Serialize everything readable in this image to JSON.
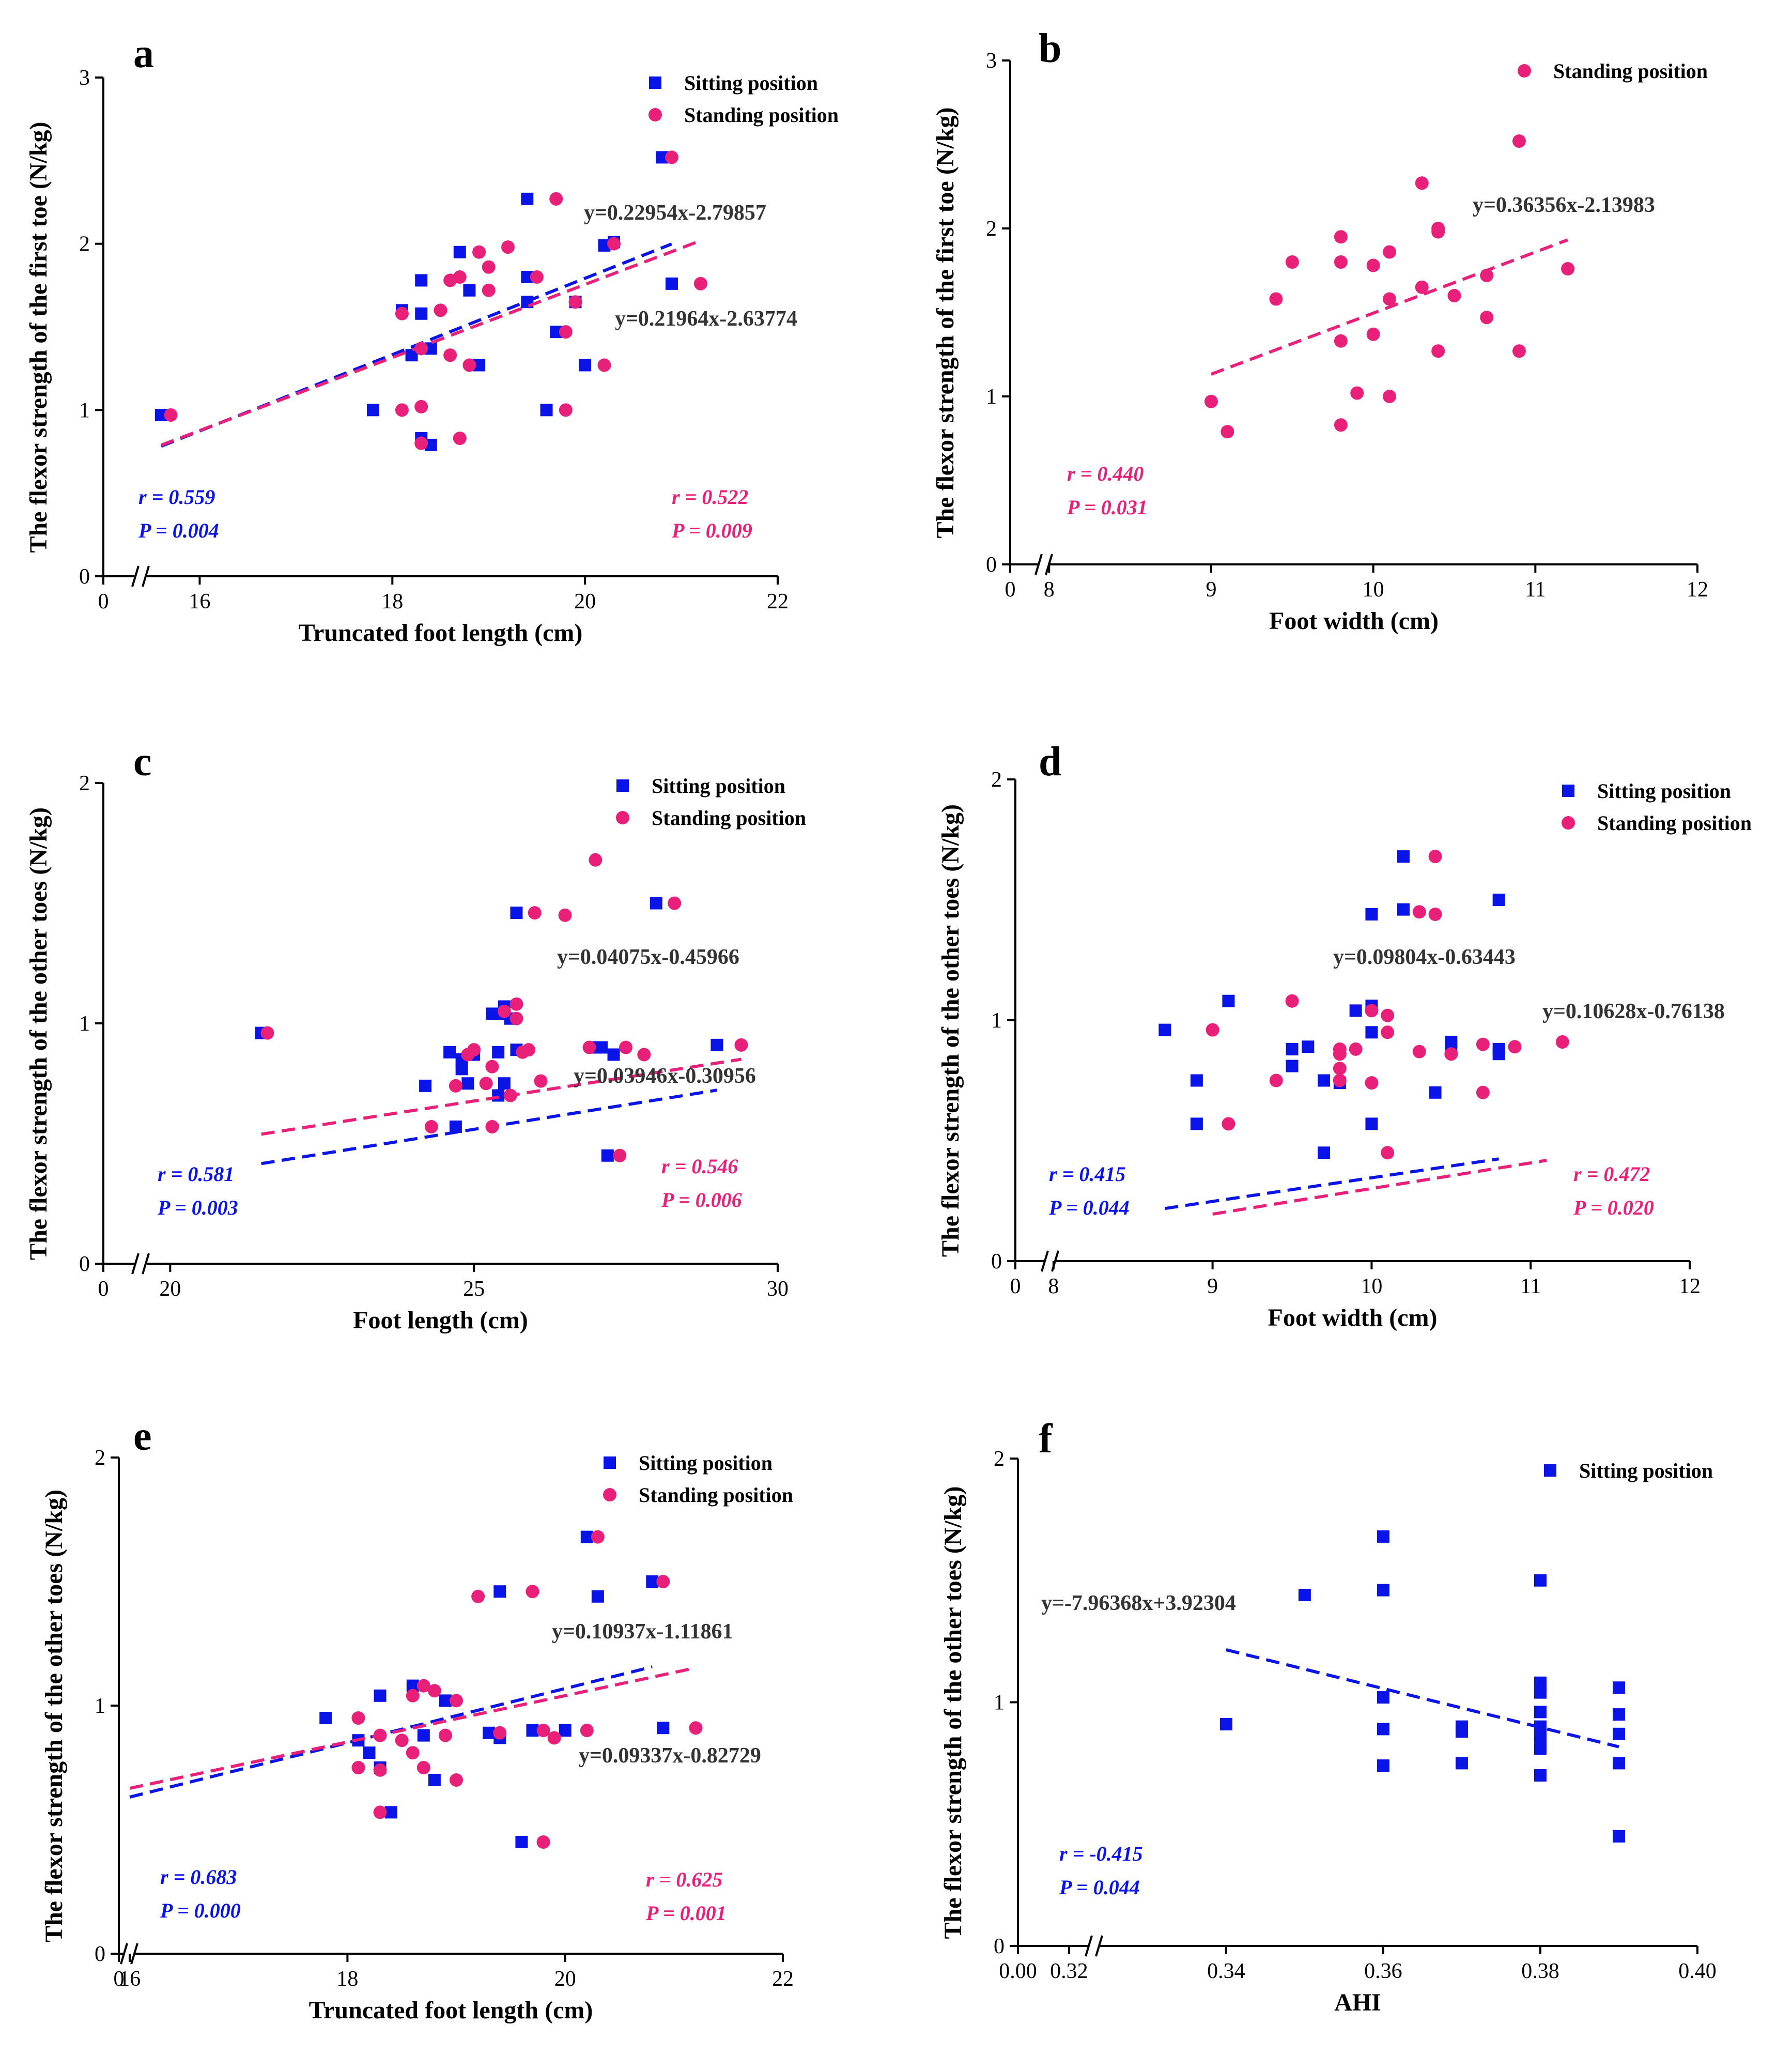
{
  "colors": {
    "sitting": "#0a14e6",
    "standing": "#e8207a",
    "axis": "#000000"
  },
  "chart_data": [
    {
      "type": "scatter",
      "panel": "a",
      "xlabel": "Truncated foot length (cm)",
      "ylabel": "The flexor strength of the first toe (N/kg)",
      "xlim": [
        15.0,
        22
      ],
      "ylim": [
        0,
        3
      ],
      "xticks": [
        0,
        16,
        18,
        20,
        22
      ],
      "yticks": [
        0,
        1,
        2,
        3
      ],
      "x_break": true,
      "legend_position": "top-right",
      "series": [
        {
          "name": "Sitting position",
          "marker": "square",
          "color": "#0a14e6",
          "x": [
            15.6,
            17.8,
            18.1,
            18.2,
            18.3,
            18.3,
            18.3,
            18.4,
            18.4,
            18.7,
            18.8,
            18.9,
            19.4,
            19.4,
            19.4,
            19.6,
            19.7,
            19.9,
            20.0,
            20.2,
            20.3,
            20.8,
            20.9
          ],
          "y": [
            0.97,
            1.0,
            1.6,
            1.33,
            1.78,
            1.58,
            0.83,
            1.37,
            0.79,
            1.95,
            1.72,
            1.27,
            2.27,
            1.8,
            1.65,
            1.0,
            1.47,
            1.65,
            1.27,
            1.99,
            2.01,
            2.52,
            1.76
          ],
          "fit_label": "y=0.22954x-2.79857",
          "fit": {
            "slope": 0.22954,
            "intercept": -2.79857,
            "x_range": [
              15.6,
              20.9
            ]
          },
          "r": "r = 0.559",
          "p": "P = 0.004"
        },
        {
          "name": "Standing position",
          "marker": "circle",
          "color": "#e8207a",
          "x": [
            15.7,
            18.1,
            18.1,
            18.3,
            18.3,
            18.3,
            18.5,
            18.6,
            18.6,
            18.7,
            18.7,
            18.8,
            18.9,
            19.0,
            19.0,
            19.2,
            19.5,
            19.7,
            19.8,
            19.8,
            19.9,
            20.2,
            20.3,
            20.9,
            21.2
          ],
          "y": [
            0.97,
            1.58,
            1.0,
            1.37,
            1.02,
            0.8,
            1.6,
            1.33,
            1.78,
            1.8,
            0.83,
            1.27,
            1.95,
            1.86,
            1.72,
            1.98,
            1.8,
            2.27,
            1.47,
            1.0,
            1.65,
            1.27,
            2.0,
            2.52,
            1.76
          ],
          "fit_label": "y=0.21964x-2.63774",
          "fit": {
            "slope": 0.21964,
            "intercept": -2.63774,
            "x_range": [
              15.6,
              21.2
            ]
          },
          "r": "r = 0.522",
          "p": "P = 0.009"
        }
      ]
    },
    {
      "type": "scatter",
      "panel": "b",
      "xlabel": "Foot width (cm)",
      "ylabel": "The flexor strength of the first toe (N/kg)",
      "xlim": [
        7.76,
        12
      ],
      "ylim": [
        0,
        3
      ],
      "xticks": [
        0,
        8,
        9,
        10,
        11,
        12
      ],
      "yticks": [
        0,
        1,
        2,
        3
      ],
      "x_break": true,
      "legend_position": "top-right",
      "series": [
        {
          "name": "Standing position",
          "marker": "circle",
          "color": "#e8207a",
          "x": [
            9.0,
            9.1,
            9.4,
            9.5,
            9.8,
            9.8,
            9.8,
            9.8,
            9.9,
            10.0,
            10.0,
            10.1,
            10.1,
            10.1,
            10.3,
            10.3,
            10.4,
            10.4,
            10.4,
            10.5,
            10.7,
            10.7,
            10.9,
            10.9,
            11.2
          ],
          "y": [
            0.97,
            0.79,
            1.58,
            1.8,
            1.95,
            1.8,
            1.33,
            0.83,
            1.02,
            1.78,
            1.37,
            1.86,
            1.58,
            1.0,
            2.27,
            1.65,
            2.0,
            1.98,
            1.27,
            1.6,
            1.72,
            1.47,
            2.52,
            1.27,
            1.76
          ],
          "fit_label": "y=0.36356x-2.13983",
          "fit": {
            "slope": 0.36356,
            "intercept": -2.13983,
            "x_range": [
              9.0,
              11.2
            ]
          },
          "r": "r = 0.440",
          "p": "P = 0.031"
        }
      ]
    },
    {
      "type": "scatter",
      "panel": "c",
      "xlabel": "Foot length (cm)",
      "ylabel": "The flexor strength of the other toes (N/kg)",
      "xlim": [
        18.9,
        30
      ],
      "ylim": [
        0,
        2
      ],
      "xticks": [
        0,
        20,
        25,
        30
      ],
      "yticks": [
        0,
        1,
        2
      ],
      "x_break": true,
      "legend_position": "top-right",
      "series": [
        {
          "name": "Sitting position",
          "marker": "square",
          "color": "#0a14e6",
          "x": [
            21.5,
            24.2,
            24.7,
            24.6,
            24.8,
            24.8,
            24.9,
            25.0,
            25.3,
            25.4,
            25.4,
            25.5,
            25.5,
            25.5,
            25.6,
            25.7,
            25.7,
            27.0,
            27.1,
            27.2,
            27.3,
            28.0,
            29.0
          ],
          "y": [
            0.96,
            0.74,
            0.57,
            0.88,
            0.85,
            0.81,
            0.75,
            0.87,
            1.04,
            0.88,
            0.7,
            1.07,
            1.04,
            0.75,
            1.02,
            1.46,
            0.89,
            0.9,
            0.9,
            0.45,
            0.87,
            1.5,
            0.91
          ],
          "fit_label": "y=0.04075x-0.45966",
          "fit": {
            "slope": 0.04075,
            "intercept": -0.45966,
            "x_range": [
              21.5,
              29.0
            ]
          },
          "r": "r = 0.581",
          "p": "P = 0.003"
        },
        {
          "name": "Standing position",
          "marker": "circle",
          "color": "#e8207a",
          "x": [
            21.6,
            24.3,
            24.7,
            24.9,
            25.0,
            25.2,
            25.3,
            25.3,
            25.5,
            25.6,
            25.7,
            25.7,
            25.8,
            25.9,
            26.0,
            26.1,
            26.5,
            26.9,
            27.0,
            27.4,
            27.5,
            27.8,
            28.3,
            29.4
          ],
          "y": [
            0.96,
            0.57,
            0.74,
            0.87,
            0.89,
            0.75,
            0.57,
            0.82,
            1.05,
            0.7,
            1.08,
            1.02,
            0.88,
            0.89,
            1.46,
            0.76,
            1.45,
            0.9,
            1.68,
            0.45,
            0.9,
            0.87,
            1.5,
            0.91
          ],
          "fit_label": "y=0.03946x-0.30956",
          "fit": {
            "slope": 0.03946,
            "intercept": -0.30956,
            "x_range": [
              21.5,
              29.4
            ]
          },
          "r": "r = 0.546",
          "p": "P = 0.006"
        }
      ]
    },
    {
      "type": "scatter",
      "panel": "d",
      "xlabel": "Foot width (cm)",
      "ylabel": "The flexor strength of the other toes (N/kg)",
      "xlim": [
        7.76,
        12
      ],
      "ylim": [
        0,
        2
      ],
      "xticks": [
        0,
        8,
        9,
        10,
        11,
        12
      ],
      "yticks": [
        0,
        1,
        2
      ],
      "x_break": true,
      "legend_position": "top-right",
      "series": [
        {
          "name": "Sitting position",
          "marker": "square",
          "color": "#0a14e6",
          "x": [
            8.7,
            8.9,
            8.9,
            9.1,
            9.5,
            9.5,
            9.6,
            9.7,
            9.7,
            9.8,
            9.9,
            10.0,
            10.0,
            10.0,
            10.0,
            10.2,
            10.2,
            10.4,
            10.5,
            10.5,
            10.8,
            10.8,
            10.8
          ],
          "y": [
            0.96,
            0.75,
            0.57,
            1.08,
            0.88,
            0.81,
            0.89,
            0.75,
            0.45,
            0.74,
            1.04,
            1.44,
            1.06,
            0.95,
            0.57,
            1.68,
            1.46,
            0.7,
            0.91,
            0.89,
            1.5,
            0.88,
            0.86
          ],
          "fit_label": "y=0.09804x-0.63443",
          "fit": {
            "slope": 0.09804,
            "intercept": -0.63443,
            "x_range": [
              8.7,
              10.8
            ]
          },
          "r": "r = 0.415",
          "p": "P = 0.044"
        },
        {
          "name": "Standing position",
          "marker": "circle",
          "color": "#e8207a",
          "x": [
            9.0,
            9.1,
            9.4,
            9.5,
            9.8,
            9.8,
            9.8,
            9.8,
            9.9,
            10.0,
            10.0,
            10.1,
            10.1,
            10.1,
            10.3,
            10.3,
            10.4,
            10.4,
            10.5,
            10.7,
            10.7,
            10.9,
            11.2
          ],
          "y": [
            0.96,
            0.57,
            0.75,
            1.08,
            0.88,
            0.86,
            0.8,
            0.75,
            0.88,
            1.04,
            0.74,
            1.02,
            0.95,
            0.45,
            1.45,
            0.87,
            1.68,
            1.44,
            0.86,
            0.9,
            0.7,
            0.89,
            0.91
          ],
          "fit_label": "y=0.10628x-0.76138",
          "fit": {
            "slope": 0.10628,
            "intercept": -0.76138,
            "x_range": [
              9.0,
              11.1
            ]
          },
          "r": "r = 0.472",
          "p": "P = 0.020"
        }
      ]
    },
    {
      "type": "scatter",
      "panel": "e",
      "xlabel": "Truncated foot length (cm)",
      "ylabel": "The flexor strength of the other toes (N/kg)",
      "xlim": [
        15.9,
        22
      ],
      "ylim": [
        0,
        2
      ],
      "xticks": [
        0,
        16,
        18,
        20,
        22
      ],
      "yticks": [
        0,
        1,
        2
      ],
      "x_break": true,
      "legend_position": "top-right",
      "series": [
        {
          "name": "Sitting position",
          "marker": "square",
          "color": "#0a14e6",
          "x": [
            17.8,
            18.1,
            18.2,
            18.3,
            18.3,
            18.4,
            18.6,
            18.7,
            18.8,
            18.9,
            19.3,
            19.4,
            19.4,
            19.6,
            19.7,
            20.0,
            20.2,
            20.3,
            20.8,
            20.9
          ],
          "y": [
            0.95,
            0.86,
            0.81,
            1.04,
            0.75,
            0.57,
            1.08,
            0.88,
            0.7,
            1.02,
            0.89,
            1.46,
            0.87,
            0.45,
            0.9,
            0.9,
            1.68,
            1.44,
            1.5,
            0.91
          ],
          "fit_label": "y=0.10937x-1.11861",
          "fit": {
            "slope": 0.10937,
            "intercept": -1.11861,
            "x_range": [
              16.0,
              20.8
            ]
          },
          "r": "r = 0.683",
          "p": "P = 0.000"
        },
        {
          "name": "Standing position",
          "marker": "circle",
          "color": "#e8207a",
          "x": [
            18.1,
            18.1,
            18.3,
            18.3,
            18.3,
            18.5,
            18.6,
            18.6,
            18.7,
            18.7,
            18.8,
            18.9,
            19.0,
            19.0,
            19.2,
            19.4,
            19.7,
            19.8,
            19.8,
            19.9,
            20.2,
            20.3,
            20.9,
            21.2
          ],
          "y": [
            0.95,
            0.75,
            0.88,
            0.74,
            0.57,
            0.86,
            0.81,
            1.04,
            1.08,
            0.75,
            1.06,
            0.88,
            1.02,
            0.7,
            1.44,
            0.89,
            1.46,
            0.9,
            0.45,
            0.87,
            0.9,
            1.68,
            1.5,
            0.91
          ],
          "fit_label": "y=0.09337x-0.82729",
          "fit": {
            "slope": 0.09337,
            "intercept": -0.82729,
            "x_range": [
              16.0,
              21.2
            ]
          },
          "r": "r = 0.625",
          "p": "P = 0.001"
        }
      ]
    },
    {
      "type": "scatter",
      "panel": "f",
      "xlabel": "AHI",
      "ylabel": "The flexor strength of the other toes (N/kg)",
      "xlim": [
        0.3135,
        0.4
      ],
      "ylim": [
        0,
        2
      ],
      "xticks": [
        "0.00",
        "0.32",
        "0.34",
        "0.36",
        "0.38",
        "0.40"
      ],
      "yticks": [
        0,
        1,
        2
      ],
      "x_break": true,
      "legend_position": "top-right",
      "series": [
        {
          "name": "Sitting position",
          "marker": "square",
          "color": "#0a14e6",
          "x": [
            0.34,
            0.35,
            0.36,
            0.36,
            0.36,
            0.36,
            0.36,
            0.37,
            0.37,
            0.37,
            0.38,
            0.38,
            0.38,
            0.38,
            0.38,
            0.38,
            0.38,
            0.38,
            0.38,
            0.38,
            0.39,
            0.39,
            0.39,
            0.39,
            0.39
          ],
          "y": [
            0.91,
            1.44,
            1.68,
            1.46,
            1.02,
            0.89,
            0.74,
            0.9,
            0.88,
            0.75,
            1.5,
            1.08,
            1.06,
            1.04,
            0.96,
            0.9,
            0.88,
            0.85,
            0.81,
            0.7,
            1.06,
            0.95,
            0.87,
            0.75,
            0.45
          ],
          "fit_label": "y=-7.96368x+3.92304",
          "fit": {
            "slope": -7.96368,
            "intercept": 3.92304,
            "x_range": [
              0.34,
              0.39
            ]
          },
          "r": "r = -0.415",
          "p": "P = 0.044"
        }
      ]
    }
  ]
}
